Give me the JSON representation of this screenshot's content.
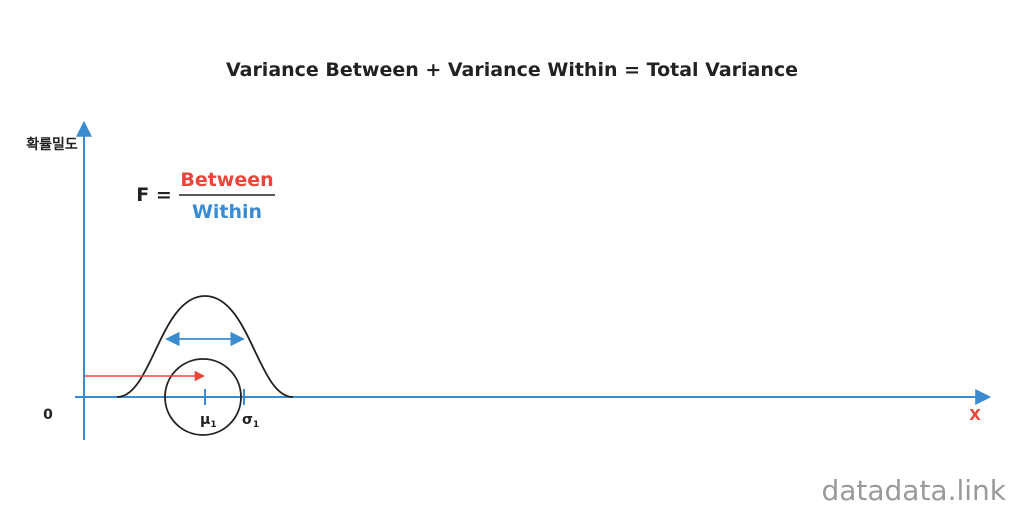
{
  "title": "Variance Between + Variance Within = Total Variance",
  "axes": {
    "y_label": "확률밀도",
    "origin": "0",
    "x_label": "X"
  },
  "formula": {
    "lhs": "F =",
    "numerator": "Between",
    "denominator": "Within"
  },
  "curve": {
    "mean_label": {
      "symbol": "μ",
      "subscript": "1"
    },
    "sd_label": {
      "symbol": "σ",
      "subscript": "1"
    }
  },
  "watermark": "datadata.link"
}
